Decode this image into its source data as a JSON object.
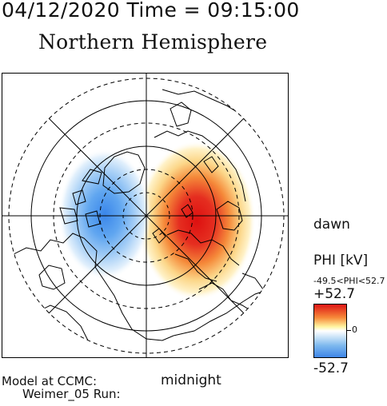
{
  "header": {
    "datetime": "04/12/2020 Time = 09:15:00",
    "title": "Northern Hemisphere"
  },
  "plot": {
    "labels": {
      "dawn": "dawn",
      "midnight": "midnight"
    }
  },
  "colorbar": {
    "title": "PHI [kV]",
    "range_text": "-49.5<PHI<52.7",
    "max_label": "+52.7",
    "zero_label": "0",
    "min_label": "-52.7",
    "colors": {
      "max": "#dd1515",
      "mid_high": "#f78a3a",
      "zero": "#ffffff",
      "mid_low": "#7db8ee",
      "min": "#3f86e8"
    }
  },
  "footer": {
    "model_at": "Model at CCMC:",
    "model_run": "Weimer_05 Run:"
  },
  "colors": {
    "positive": "#e01a1a",
    "negative": "#3f86e8",
    "coast": "#000000",
    "grid": "#000000"
  }
}
